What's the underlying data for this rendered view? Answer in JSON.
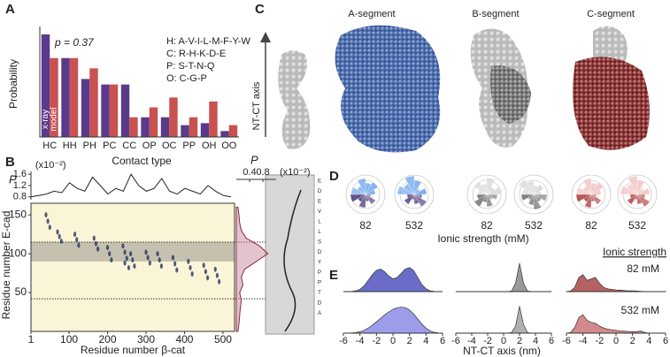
{
  "panels": [
    "A",
    "B",
    "C",
    "D",
    "E"
  ],
  "chart_data": [
    {
      "type": "bar",
      "categories": [
        "HC",
        "HH",
        "PH",
        "PC",
        "CC",
        "OP",
        "OC",
        "PP",
        "OH",
        "OO"
      ],
      "series": [
        {
          "name": "x-ray",
          "color": "#5b3a8c",
          "values": [
            0.26,
            0.2,
            0.147,
            0.133,
            0.133,
            0.05,
            0.05,
            0.03,
            0.035,
            0.015
          ]
        },
        {
          "name": "model",
          "color": "#c9514f",
          "values": [
            0.2,
            0.2,
            0.174,
            0.133,
            0.05,
            0.075,
            0.1,
            0.05,
            0.09,
            0.03
          ]
        }
      ],
      "ylim": [
        0,
        0.28
      ],
      "ylabel": "Probability",
      "xlabel": "Contact type",
      "annotation": "p = 0.37",
      "legend_text": [
        "H: A-V-I-L-M-F-Y-W",
        "C: R-H-K-D-E",
        "P: S-T-N-Q",
        "O: C-G-P"
      ]
    },
    {
      "type": "line",
      "ylabel": "P",
      "unit": "(x10⁻²)",
      "color": "#222",
      "x": [
        1,
        21,
        41,
        61,
        81,
        101,
        121,
        141,
        161,
        181,
        201,
        221,
        241,
        261,
        281,
        301,
        321,
        341,
        361,
        381,
        401,
        421,
        441,
        461,
        481,
        501,
        521
      ],
      "values": [
        0.8,
        0.85,
        0.9,
        1.0,
        0.95,
        1.3,
        1.1,
        1.0,
        1.5,
        1.2,
        0.9,
        1.1,
        1.0,
        1.6,
        1.2,
        1.0,
        1.1,
        1.45,
        1.0,
        0.9,
        1.1,
        1.0,
        0.9,
        1.2,
        1.0,
        0.85,
        0.8
      ],
      "xlim": [
        1,
        530
      ],
      "ylim": [
        0.7,
        1.7
      ],
      "yticks": [
        0.8,
        1.2,
        1.6
      ]
    },
    {
      "type": "scatter",
      "xlabel": "Residue number β-cat",
      "ylabel": "Residue number E-cad",
      "color": "#1c2a5a",
      "x": [
        40,
        45,
        50,
        70,
        75,
        80,
        115,
        120,
        125,
        165,
        170,
        175,
        200,
        205,
        210,
        240,
        245,
        250,
        260,
        265,
        270,
        300,
        305,
        310,
        330,
        335,
        340,
        370,
        375,
        380,
        410,
        415,
        420,
        450,
        455,
        460,
        480,
        485,
        490,
        245,
        255
      ],
      "y": [
        150,
        142,
        134,
        128,
        122,
        116,
        125,
        118,
        111,
        120,
        113,
        106,
        108,
        100,
        92,
        110,
        102,
        94,
        100,
        92,
        84,
        102,
        95,
        88,
        100,
        92,
        84,
        95,
        87,
        79,
        90,
        82,
        74,
        85,
        77,
        69,
        80,
        72,
        64,
        88,
        82
      ],
      "xlim": [
        1,
        530
      ],
      "ylim": [
        0,
        165
      ],
      "xticks": [
        1,
        100,
        200,
        300,
        400,
        500
      ],
      "yticks": [
        50,
        100,
        150
      ],
      "band": [
        90,
        115
      ],
      "reference_lines": [
        42,
        115
      ],
      "sequence": [
        "E",
        "D",
        "E",
        "V",
        "L",
        "L",
        "S",
        "D",
        "Y",
        "P",
        "P",
        "T",
        "D",
        "A"
      ]
    },
    {
      "type": "line",
      "xlabel": "P",
      "unit": "(x10⁻²)",
      "color": "#8a2a3a",
      "y": [
        0,
        10,
        20,
        30,
        40,
        50,
        60,
        70,
        80,
        90,
        100,
        110,
        120,
        130,
        140,
        150,
        160
      ],
      "values": [
        0.05,
        0.08,
        0.1,
        0.12,
        0.15,
        0.1,
        0.2,
        0.15,
        0.25,
        0.6,
        0.95,
        0.7,
        0.3,
        0.15,
        0.1,
        0.08,
        0.05
      ],
      "xlim": [
        0,
        1.2
      ],
      "xticks": [
        0.4,
        0.8
      ],
      "ylim": [
        0,
        165
      ]
    },
    {
      "type": "area",
      "x": [
        -6,
        -5.5,
        -5,
        -4.5,
        -4,
        -3.5,
        -3,
        -2.5,
        -2,
        -1.5,
        -1,
        -0.5,
        0,
        0.5,
        1,
        1.5,
        2,
        2.5,
        3,
        3.5,
        4,
        4.5,
        5,
        5.5,
        6
      ],
      "xlim": [
        -6,
        6
      ],
      "xticks": [
        -6,
        -4,
        -2,
        0,
        2,
        4,
        6
      ],
      "ylim": [
        0,
        1
      ],
      "series": [
        {
          "color": "#6a6cc8",
          "values": [
            0,
            0,
            0.01,
            0.03,
            0.08,
            0.2,
            0.4,
            0.6,
            0.75,
            0.8,
            0.7,
            0.55,
            0.45,
            0.5,
            0.65,
            0.8,
            0.85,
            0.75,
            0.5,
            0.25,
            0.1,
            0.03,
            0.01,
            0,
            0
          ]
        },
        {
          "color": "#9d9cea",
          "values": [
            0,
            0,
            0.01,
            0.02,
            0.05,
            0.1,
            0.18,
            0.28,
            0.4,
            0.52,
            0.65,
            0.75,
            0.84,
            0.9,
            0.92,
            0.9,
            0.82,
            0.68,
            0.5,
            0.32,
            0.18,
            0.08,
            0.03,
            0.01,
            0
          ]
        }
      ]
    },
    {
      "type": "area",
      "x": [
        -6,
        -5.5,
        -5,
        -4.5,
        -4,
        -3.5,
        -3,
        -2.5,
        -2,
        -1.5,
        -1,
        -0.5,
        0,
        0.5,
        1,
        1.5,
        2,
        2.5,
        3,
        3.5,
        4,
        4.5,
        5,
        5.5,
        6
      ],
      "xlim": [
        -6,
        6
      ],
      "xticks": [
        -6,
        -4,
        -2,
        0,
        2,
        4,
        6
      ],
      "ylim": [
        0,
        1
      ],
      "xlabel": "NT-CT axis (nm)",
      "series": [
        {
          "color": "#9a9a9a",
          "values": [
            0,
            0,
            0,
            0,
            0,
            0,
            0,
            0,
            0,
            0,
            0,
            0,
            0,
            0,
            0.02,
            0.3,
            1.0,
            0.3,
            0.02,
            0,
            0,
            0,
            0,
            0,
            0
          ]
        },
        {
          "color": "#b0b0b0",
          "values": [
            0,
            0,
            0,
            0,
            0,
            0,
            0,
            0,
            0,
            0,
            0,
            0,
            0,
            0,
            0.02,
            0.25,
            0.95,
            0.3,
            0.02,
            0,
            0,
            0,
            0,
            0,
            0
          ]
        }
      ]
    },
    {
      "type": "area",
      "x": [
        -6,
        -5.5,
        -5,
        -4.5,
        -4,
        -3.5,
        -3,
        -2.5,
        -2,
        -1.5,
        -1,
        -0.5,
        0,
        0.5,
        1,
        1.5,
        2,
        2.5,
        3,
        3.5,
        4,
        4.5,
        5,
        5.5,
        6
      ],
      "xlim": [
        -6,
        6
      ],
      "xticks": [
        -6,
        -4,
        -2,
        0,
        2,
        4,
        6
      ],
      "ylim": [
        0,
        1
      ],
      "legend_title": "Ionic strength",
      "series": [
        {
          "name": "82 mM",
          "color": "#b56262",
          "values": [
            0,
            0.02,
            0.15,
            0.5,
            0.6,
            0.4,
            0.45,
            0.5,
            0.3,
            0.15,
            0.1,
            0.08,
            0.06,
            0.05,
            0.04,
            0.03,
            0.03,
            0.02,
            0.01,
            0,
            0,
            0,
            0,
            0,
            0
          ]
        },
        {
          "name": "532 mM",
          "color": "#d48a8a",
          "values": [
            0,
            0.02,
            0.2,
            0.55,
            0.65,
            0.45,
            0.38,
            0.35,
            0.25,
            0.18,
            0.14,
            0.12,
            0.1,
            0.08,
            0.07,
            0.06,
            0.05,
            0.05,
            0.08,
            0.02,
            0,
            0,
            0,
            0,
            0
          ]
        }
      ]
    }
  ],
  "panel_c": {
    "axis_label": "NT-CT axis",
    "segments": [
      "A-segment",
      "B-segment",
      "C-segment"
    ]
  },
  "panel_d": {
    "labels": [
      "82",
      "532",
      "82",
      "532",
      "82",
      "532"
    ],
    "xlabel": "Ionic strength (mM)"
  }
}
